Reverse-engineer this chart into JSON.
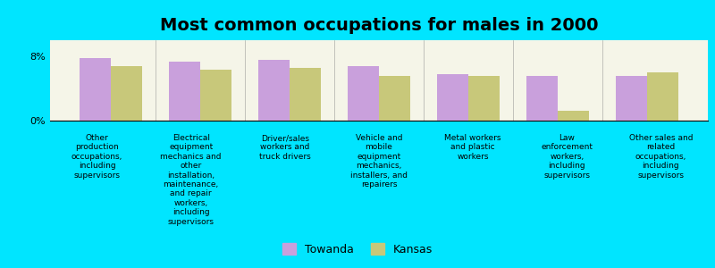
{
  "title": "Most common occupations for males in 2000",
  "categories": [
    "Other\nproduction\noccupations,\nincluding\nsupervisors",
    "Electrical\nequipment\nmechanics and\nother\ninstallation,\nmaintenance,\nand repair\nworkers,\nincluding\nsupervisors",
    "Driver/sales\nworkers and\ntruck drivers",
    "Vehicle and\nmobile\nequipment\nmechanics,\ninstallers, and\nrepairers",
    "Metal workers\nand plastic\nworkers",
    "Law\nenforcement\nworkers,\nincluding\nsupervisors",
    "Other sales and\nrelated\noccupations,\nincluding\nsupervisors"
  ],
  "towanda_values": [
    7.8,
    7.3,
    7.5,
    6.8,
    5.8,
    5.5,
    5.5
  ],
  "kansas_values": [
    6.8,
    6.3,
    6.5,
    5.5,
    5.5,
    1.2,
    6.0
  ],
  "towanda_color": "#c9a0dc",
  "kansas_color": "#c8c87a",
  "background_color": "#00e5ff",
  "plot_bg_color": "#f5f5e8",
  "ylim": [
    0,
    10
  ],
  "yticks": [
    0,
    8
  ],
  "ytick_labels": [
    "0%",
    "8%"
  ],
  "legend_labels": [
    "Towanda",
    "Kansas"
  ],
  "bar_width": 0.35,
  "title_fontsize": 14,
  "label_fontsize": 6.5
}
